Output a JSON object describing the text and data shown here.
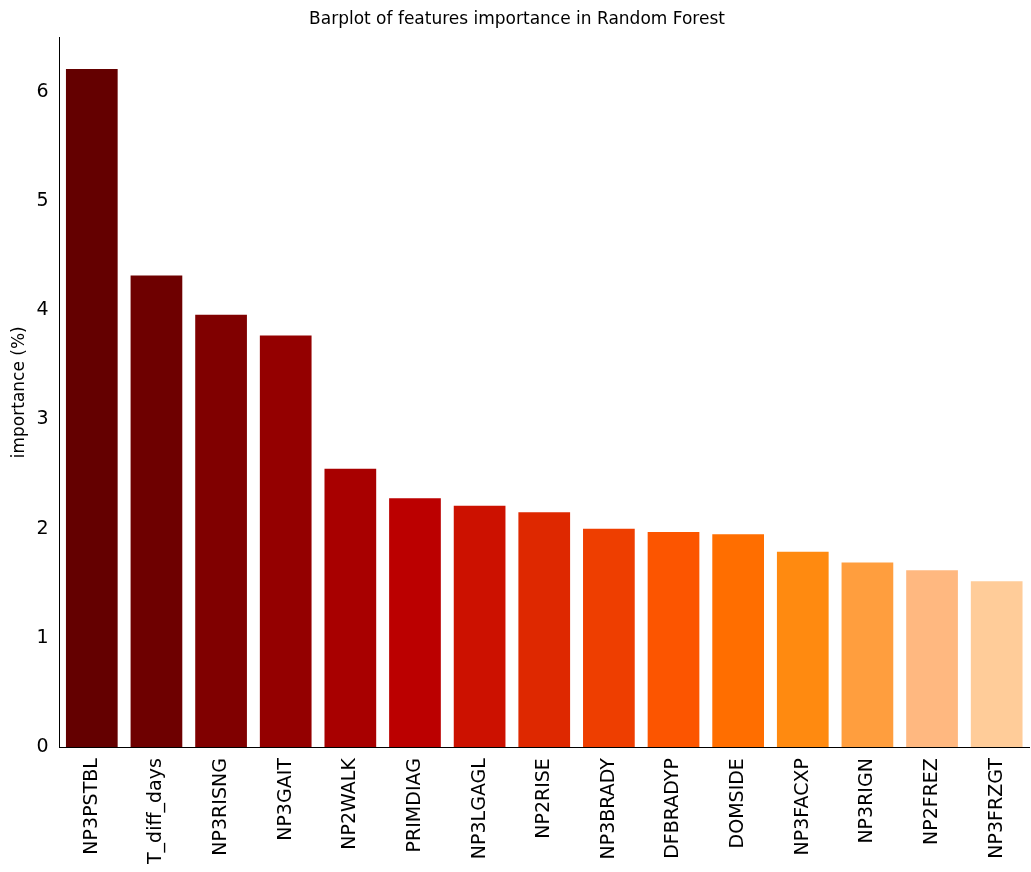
{
  "chart_data": {
    "type": "bar",
    "title": "Barplot of features importance in Random Forest",
    "ylabel": "importance (%)",
    "categories": [
      "NP3PSTBL",
      "T_diff_days",
      "NP3RISNG",
      "NP3GAIT",
      "NP2WALK",
      "PRIMDIAG",
      "NP3LGAGL",
      "NP2RISE",
      "NP3BRADY",
      "DFBRADYP",
      "DOMSIDE",
      "NP3FACXP",
      "NP3RIGN",
      "NP2FREZ",
      "NP3FRZGT"
    ],
    "values": [
      6.21,
      4.32,
      3.96,
      3.77,
      2.55,
      2.28,
      2.21,
      2.15,
      2.0,
      1.97,
      1.95,
      1.79,
      1.69,
      1.62,
      1.52
    ],
    "colors": [
      "#640000",
      "#6e0000",
      "#800000",
      "#940000",
      "#a80000",
      "#bb0000",
      "#cc1100",
      "#de2800",
      "#ee3e00",
      "#fc5500",
      "#ff6e00",
      "#ff8a10",
      "#ff9e3e",
      "#ffb880",
      "#ffcc99"
    ],
    "ylim": [
      0,
      6.5
    ],
    "yticks": [
      0,
      1,
      2,
      3,
      4,
      5,
      6
    ],
    "grid": false,
    "legend": false
  }
}
